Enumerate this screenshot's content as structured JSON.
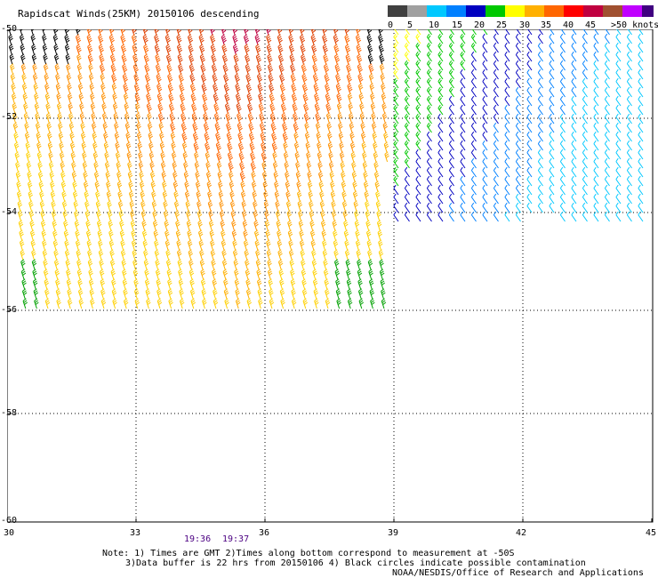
{
  "title": "Rapidscat Winds(25KM) 20150106 descending",
  "legend": {
    "colors": [
      "#404040",
      "#a0a0a0",
      "#00c8ff",
      "#0080ff",
      "#0000c0",
      "#00c800",
      "#ffff00",
      "#ffb000",
      "#ff6600",
      "#ff0000",
      "#c00040",
      "#a05030",
      "#c000ff",
      "#400080"
    ],
    "labels": [
      "0",
      "5",
      "10",
      "15",
      "20",
      "25",
      "30",
      "35",
      "40",
      "45",
      ">50 knots"
    ]
  },
  "axes": {
    "lon_labels": [
      "30",
      "33",
      "36",
      "39",
      "42",
      "45"
    ],
    "lat_labels": [
      "-50",
      "-52",
      "-54",
      "-56",
      "-58",
      "-60"
    ]
  },
  "times": [
    "19:36",
    "19:37"
  ],
  "notes": {
    "line1": "Note: 1) Times are GMT 2)Times along bottom correspond to measurement at -50S",
    "line2": "3)Data buffer is 22 hrs from 20150106 4) Black circles indicate possible contamination",
    "credit": "NOAA/NESDIS/Office of Research and Applications"
  },
  "wind_icon": "wind-barb-icon"
}
